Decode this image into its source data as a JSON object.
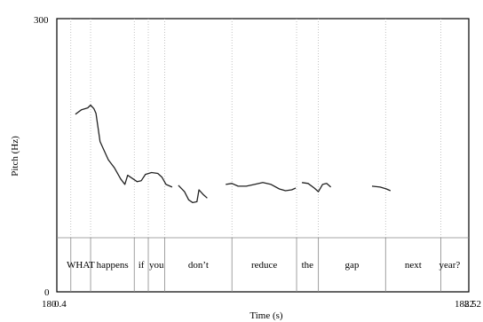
{
  "chart_data": {
    "type": "line",
    "title": "",
    "xlabel": "Time (s)",
    "ylabel": "Pitch (Hz)",
    "y_ticks": [
      "300",
      "0"
    ],
    "x_tick_left_labels": [
      "180",
      "0.4"
    ],
    "x_tick_right_labels": [
      "182",
      "82",
      "52"
    ],
    "ylim": [
      0,
      300
    ],
    "xlim": [
      0,
      1
    ],
    "pitch_segments": [
      [
        [
          0.045,
          195
        ],
        [
          0.06,
          200
        ],
        [
          0.075,
          202
        ],
        [
          0.082,
          205
        ],
        [
          0.09,
          201
        ],
        [
          0.095,
          196
        ],
        [
          0.105,
          165
        ],
        [
          0.125,
          145
        ],
        [
          0.14,
          136
        ],
        [
          0.155,
          124
        ],
        [
          0.165,
          118
        ],
        [
          0.172,
          128
        ],
        [
          0.195,
          121
        ],
        [
          0.205,
          122
        ],
        [
          0.215,
          129
        ],
        [
          0.23,
          131
        ],
        [
          0.245,
          130
        ],
        [
          0.255,
          126
        ],
        [
          0.265,
          118
        ],
        [
          0.28,
          115
        ]
      ],
      [
        [
          0.295,
          117
        ],
        [
          0.31,
          110
        ],
        [
          0.32,
          101
        ],
        [
          0.33,
          98
        ],
        [
          0.34,
          99
        ],
        [
          0.345,
          112
        ],
        [
          0.355,
          107
        ],
        [
          0.365,
          103
        ]
      ],
      [
        [
          0.41,
          118
        ],
        [
          0.425,
          119
        ],
        [
          0.44,
          116
        ],
        [
          0.46,
          116
        ],
        [
          0.48,
          118
        ],
        [
          0.5,
          120
        ],
        [
          0.52,
          118
        ],
        [
          0.54,
          113
        ],
        [
          0.555,
          111
        ],
        [
          0.57,
          112
        ],
        [
          0.58,
          114
        ]
      ],
      [
        [
          0.595,
          120
        ],
        [
          0.61,
          119
        ],
        [
          0.625,
          114
        ],
        [
          0.635,
          110
        ],
        [
          0.645,
          118
        ],
        [
          0.655,
          119
        ],
        [
          0.665,
          115
        ]
      ],
      [
        [
          0.765,
          116
        ],
        [
          0.785,
          115
        ],
        [
          0.8,
          113
        ],
        [
          0.81,
          111
        ]
      ]
    ],
    "word_boundaries": [
      0.0,
      0.034,
      0.082,
      0.188,
      0.222,
      0.262,
      0.425,
      0.582,
      0.635,
      0.798,
      0.932,
      0.975
    ],
    "words": [
      "WHAT",
      "happens",
      "if",
      "you",
      "don’t",
      "reduce",
      "the",
      "gap",
      "next",
      "year?"
    ]
  }
}
